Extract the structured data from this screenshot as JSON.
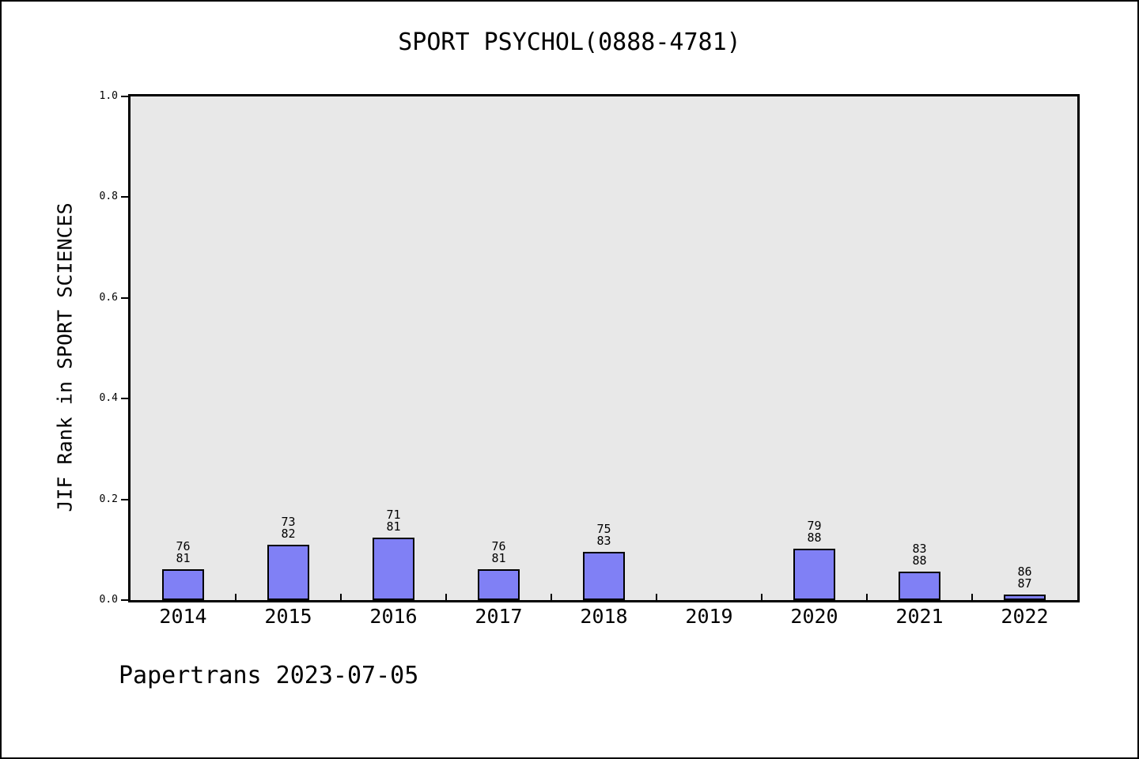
{
  "title": "SPORT PSYCHOL(0888-4781)",
  "footer": {
    "text": "Papertrans 2023-07-05"
  },
  "colors": {
    "bar_fill": "#8080f5",
    "bar_edge": "#000000",
    "plot_background": "#e8e8e8",
    "frame_border": "#000000",
    "text": "#000000"
  },
  "chart_data": {
    "type": "bar",
    "title": "SPORT PSYCHOL(0888-4781)",
    "xlabel": "",
    "ylabel": "JIF Rank in SPORT SCIENCES",
    "ylim": [
      0.0,
      1.0
    ],
    "grid": false,
    "legend": "none",
    "y_ticks": [
      {
        "value": 0.0,
        "label": "0.0"
      },
      {
        "value": 0.2,
        "label": "0.2"
      },
      {
        "value": 0.4,
        "label": "0.4"
      },
      {
        "value": 0.6,
        "label": "0.6"
      },
      {
        "value": 0.8,
        "label": "0.8"
      },
      {
        "value": 1.0,
        "label": "1.0"
      }
    ],
    "categories": [
      "2014",
      "2015",
      "2016",
      "2017",
      "2018",
      "2019",
      "2020",
      "2021",
      "2022"
    ],
    "series": [
      {
        "name": "JIF Rank in SPORT SCIENCES",
        "points": [
          {
            "year": "2014",
            "rank": 76,
            "total": 81,
            "value": 0.0617
          },
          {
            "year": "2015",
            "rank": 73,
            "total": 82,
            "value": 0.1098
          },
          {
            "year": "2016",
            "rank": 71,
            "total": 81,
            "value": 0.1235
          },
          {
            "year": "2017",
            "rank": 76,
            "total": 81,
            "value": 0.0617
          },
          {
            "year": "2018",
            "rank": 75,
            "total": 83,
            "value": 0.0964
          },
          {
            "year": "2019",
            "rank": null,
            "total": null,
            "value": null
          },
          {
            "year": "2020",
            "rank": 79,
            "total": 88,
            "value": 0.1023
          },
          {
            "year": "2021",
            "rank": 83,
            "total": 88,
            "value": 0.0568
          },
          {
            "year": "2022",
            "rank": 86,
            "total": 87,
            "value": 0.0115
          }
        ]
      }
    ]
  }
}
